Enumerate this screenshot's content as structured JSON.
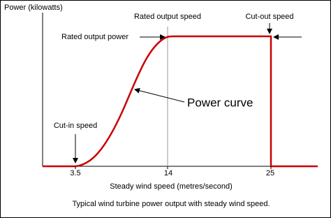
{
  "axis_labels": {
    "y": "Power (kilowatts)",
    "x": "Steady wind speed (metres/second)"
  },
  "x_ticks": [
    "3.5",
    "14",
    "25"
  ],
  "annotations": {
    "rated_output_speed": "Rated output speed",
    "cut_out_speed": "Cut-out speed",
    "rated_output_power": "Rated output power",
    "cut_in_speed": "Cut-in speed",
    "power_curve": "Power curve"
  },
  "caption": "Typical wind turbine power output with steady wind speed."
}
